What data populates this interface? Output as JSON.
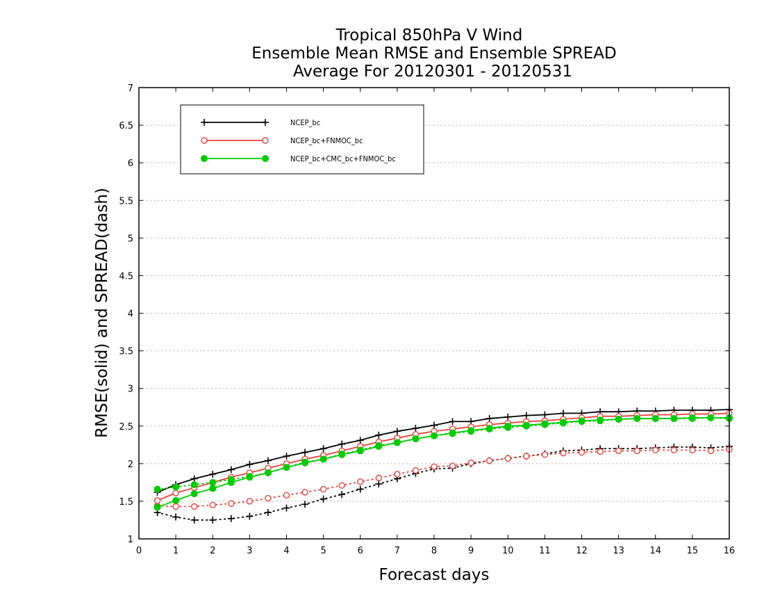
{
  "chart_data": {
    "type": "line",
    "title": [
      "Tropical 850hPa V Wind",
      "Ensemble Mean RMSE and Ensemble SPREAD",
      "Average For 20120301 - 20120531"
    ],
    "xlabel": "Forecast days",
    "ylabel": "RMSE(solid) and SPREAD(dash)",
    "xlim": [
      0,
      16
    ],
    "ylim": [
      1,
      7
    ],
    "xticks": [
      "0",
      "1",
      "2",
      "3",
      "4",
      "5",
      "6",
      "7",
      "8",
      "9",
      "10",
      "11",
      "12",
      "13",
      "14",
      "15",
      "16"
    ],
    "yticks": [
      "1",
      "1.5",
      "2",
      "2.5",
      "3",
      "3.5",
      "4",
      "4.5",
      "5",
      "5.5",
      "6",
      "6.5",
      "7"
    ],
    "grid": "horizontal dotted",
    "legend_position": "top-left",
    "x": [
      0.5,
      1,
      1.5,
      2,
      2.5,
      3,
      3.5,
      4,
      4.5,
      5,
      5.5,
      6,
      6.5,
      7,
      7.5,
      8,
      8.5,
      9,
      9.5,
      10,
      10.5,
      11,
      11.5,
      12,
      12.5,
      13,
      13.5,
      14,
      14.5,
      15,
      15.5,
      16
    ],
    "series": [
      {
        "name": "NCEP_bc",
        "color": "#000000",
        "marker": "plus",
        "rmse": [
          1.62,
          1.72,
          1.8,
          1.86,
          1.92,
          1.99,
          2.04,
          2.1,
          2.15,
          2.2,
          2.26,
          2.31,
          2.38,
          2.43,
          2.47,
          2.51,
          2.56,
          2.56,
          2.6,
          2.62,
          2.64,
          2.65,
          2.67,
          2.67,
          2.69,
          2.69,
          2.7,
          2.7,
          2.71,
          2.71,
          2.71,
          2.72
        ],
        "spread": [
          1.35,
          1.29,
          1.25,
          1.25,
          1.27,
          1.3,
          1.35,
          1.41,
          1.46,
          1.53,
          1.59,
          1.66,
          1.73,
          1.8,
          1.87,
          1.93,
          1.94,
          2.0,
          2.04,
          2.07,
          2.1,
          2.13,
          2.17,
          2.18,
          2.2,
          2.2,
          2.2,
          2.21,
          2.22,
          2.22,
          2.21,
          2.23
        ]
      },
      {
        "name": "NCEP_bc+FNMOC_bc",
        "color": "#e8413c",
        "marker": "open-circle",
        "rmse": [
          1.51,
          1.61,
          1.68,
          1.75,
          1.82,
          1.88,
          1.94,
          2.0,
          2.06,
          2.11,
          2.17,
          2.23,
          2.29,
          2.34,
          2.39,
          2.43,
          2.46,
          2.49,
          2.52,
          2.54,
          2.56,
          2.57,
          2.59,
          2.61,
          2.63,
          2.63,
          2.64,
          2.65,
          2.65,
          2.66,
          2.66,
          2.67
        ],
        "spread": [
          1.44,
          1.43,
          1.43,
          1.45,
          1.47,
          1.5,
          1.54,
          1.58,
          1.62,
          1.66,
          1.71,
          1.76,
          1.81,
          1.86,
          1.91,
          1.96,
          1.97,
          2.01,
          2.04,
          2.07,
          2.1,
          2.12,
          2.14,
          2.15,
          2.16,
          2.17,
          2.17,
          2.18,
          2.18,
          2.18,
          2.17,
          2.19
        ]
      },
      {
        "name": "NCEP_bc+CMC_bc+FNMOC_bc",
        "color": "#00cc00",
        "marker": "filled-circle",
        "rmse": [
          1.42,
          1.51,
          1.6,
          1.67,
          1.75,
          1.82,
          1.88,
          1.95,
          2.01,
          2.06,
          2.12,
          2.17,
          2.23,
          2.28,
          2.33,
          2.37,
          2.41,
          2.44,
          2.47,
          2.5,
          2.51,
          2.53,
          2.55,
          2.57,
          2.58,
          2.59,
          2.6,
          2.6,
          2.6,
          2.61,
          2.61,
          2.61
        ],
        "spread": [
          1.66,
          1.69,
          1.72,
          1.75,
          1.79,
          1.83,
          1.88,
          1.95,
          2.02,
          2.06,
          2.13,
          2.18,
          2.24,
          2.28,
          2.33,
          2.37,
          2.4,
          2.43,
          2.46,
          2.48,
          2.5,
          2.52,
          2.54,
          2.56,
          2.57,
          2.59,
          2.6,
          2.6,
          2.6,
          2.6,
          2.61,
          2.6
        ]
      }
    ]
  }
}
